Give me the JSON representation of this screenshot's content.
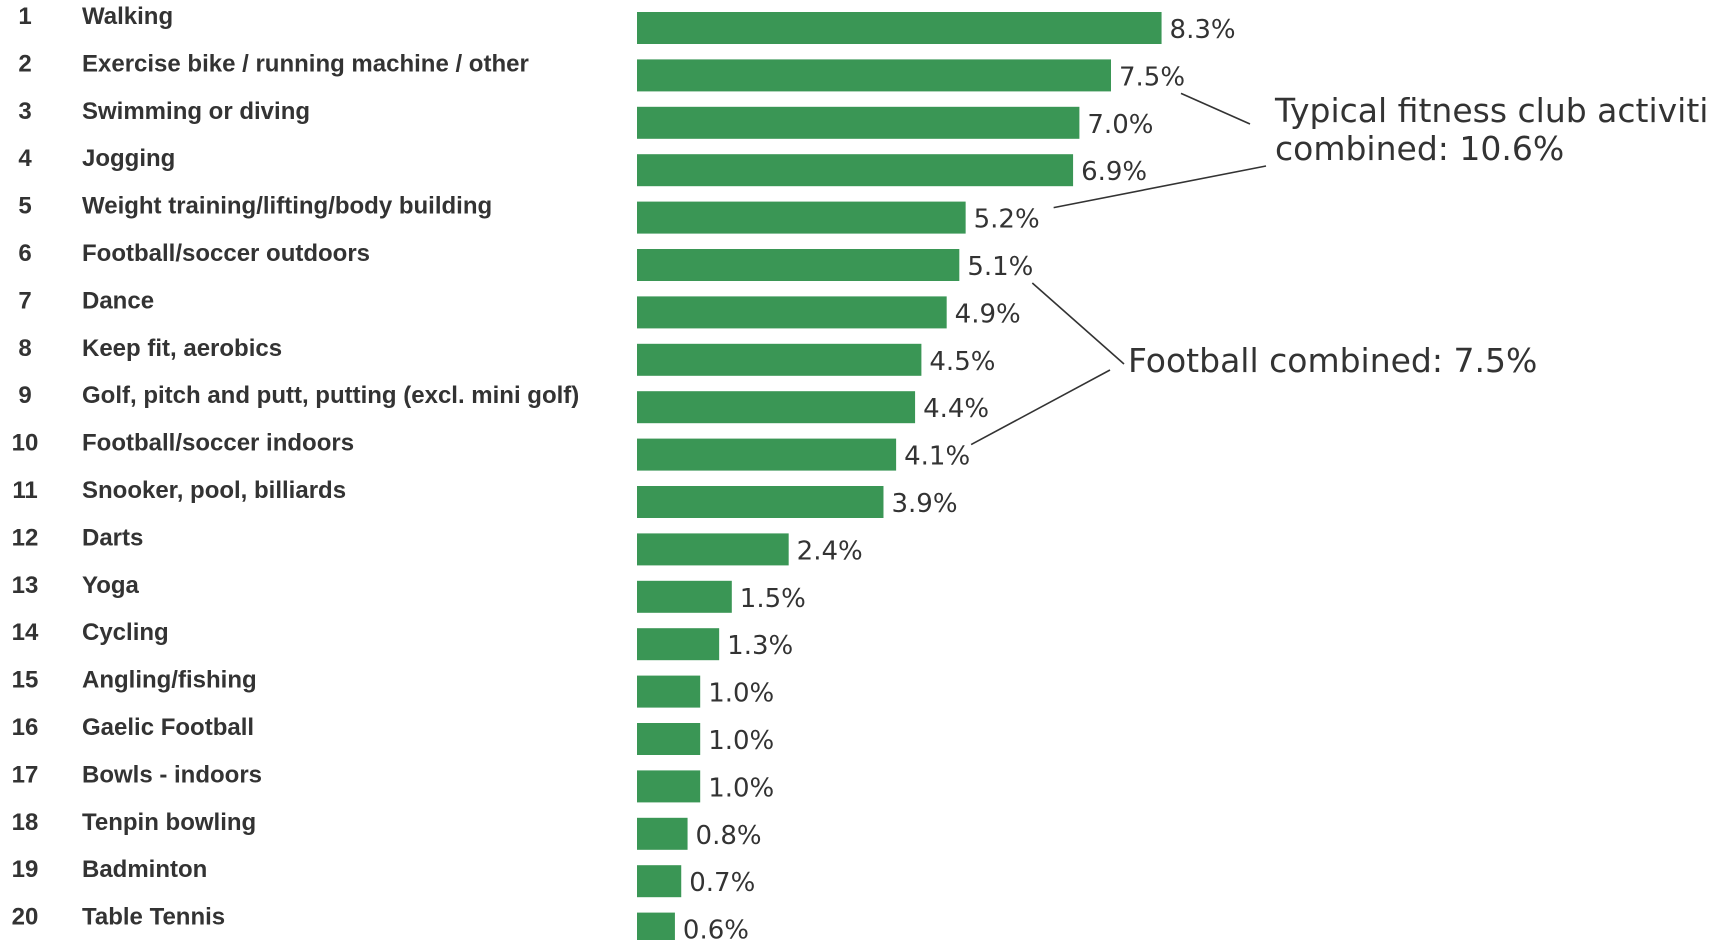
{
  "chart_data": {
    "type": "bar",
    "orientation": "horizontal",
    "color": "#3a9655",
    "xlim": [
      0,
      9
    ],
    "grid": false,
    "ranks": [
      "1",
      "2",
      "3",
      "4",
      "5",
      "6",
      "7",
      "8",
      "9",
      "10",
      "11",
      "12",
      "13",
      "14",
      "15",
      "16",
      "17",
      "18",
      "19",
      "20"
    ],
    "categories": [
      "Walking",
      "Exercise bike / running machine / other",
      "Swimming or diving",
      "Jogging",
      "Weight training/lifting/body building",
      "Football/soccer outdoors",
      "Dance",
      "Keep fit, aerobics",
      "Golf, pitch and putt, putting (excl. mini golf)",
      "Football/soccer indoors",
      "Snooker, pool, billiards",
      "Darts",
      "Yoga",
      "Cycling",
      "Angling/fishing",
      "Gaelic Football",
      "Bowls - indoors",
      "Tenpin bowling",
      "Badminton",
      "Table Tennis"
    ],
    "values": [
      8.3,
      7.5,
      7.0,
      6.9,
      5.2,
      5.1,
      4.9,
      4.5,
      4.4,
      4.1,
      3.9,
      2.4,
      1.5,
      1.3,
      1.0,
      1.0,
      1.0,
      0.8,
      0.7,
      0.6
    ],
    "value_labels": [
      "8.3%",
      "7.5%",
      "7.0%",
      "6.9%",
      "5.2%",
      "5.1%",
      "4.9%",
      "4.5%",
      "4.4%",
      "4.1%",
      "3.9%",
      "2.4%",
      "1.5%",
      "1.3%",
      "1.0%",
      "1.0%",
      "1.0%",
      "0.8%",
      "0.7%",
      "0.6%"
    ],
    "annotations": [
      {
        "lines": [
          "Typical fitness club activities",
          "combined: 10.6%"
        ],
        "targets": [
          1,
          4
        ]
      },
      {
        "lines": [
          "Football combined: 7.5%"
        ],
        "targets": [
          5,
          9
        ]
      }
    ]
  }
}
